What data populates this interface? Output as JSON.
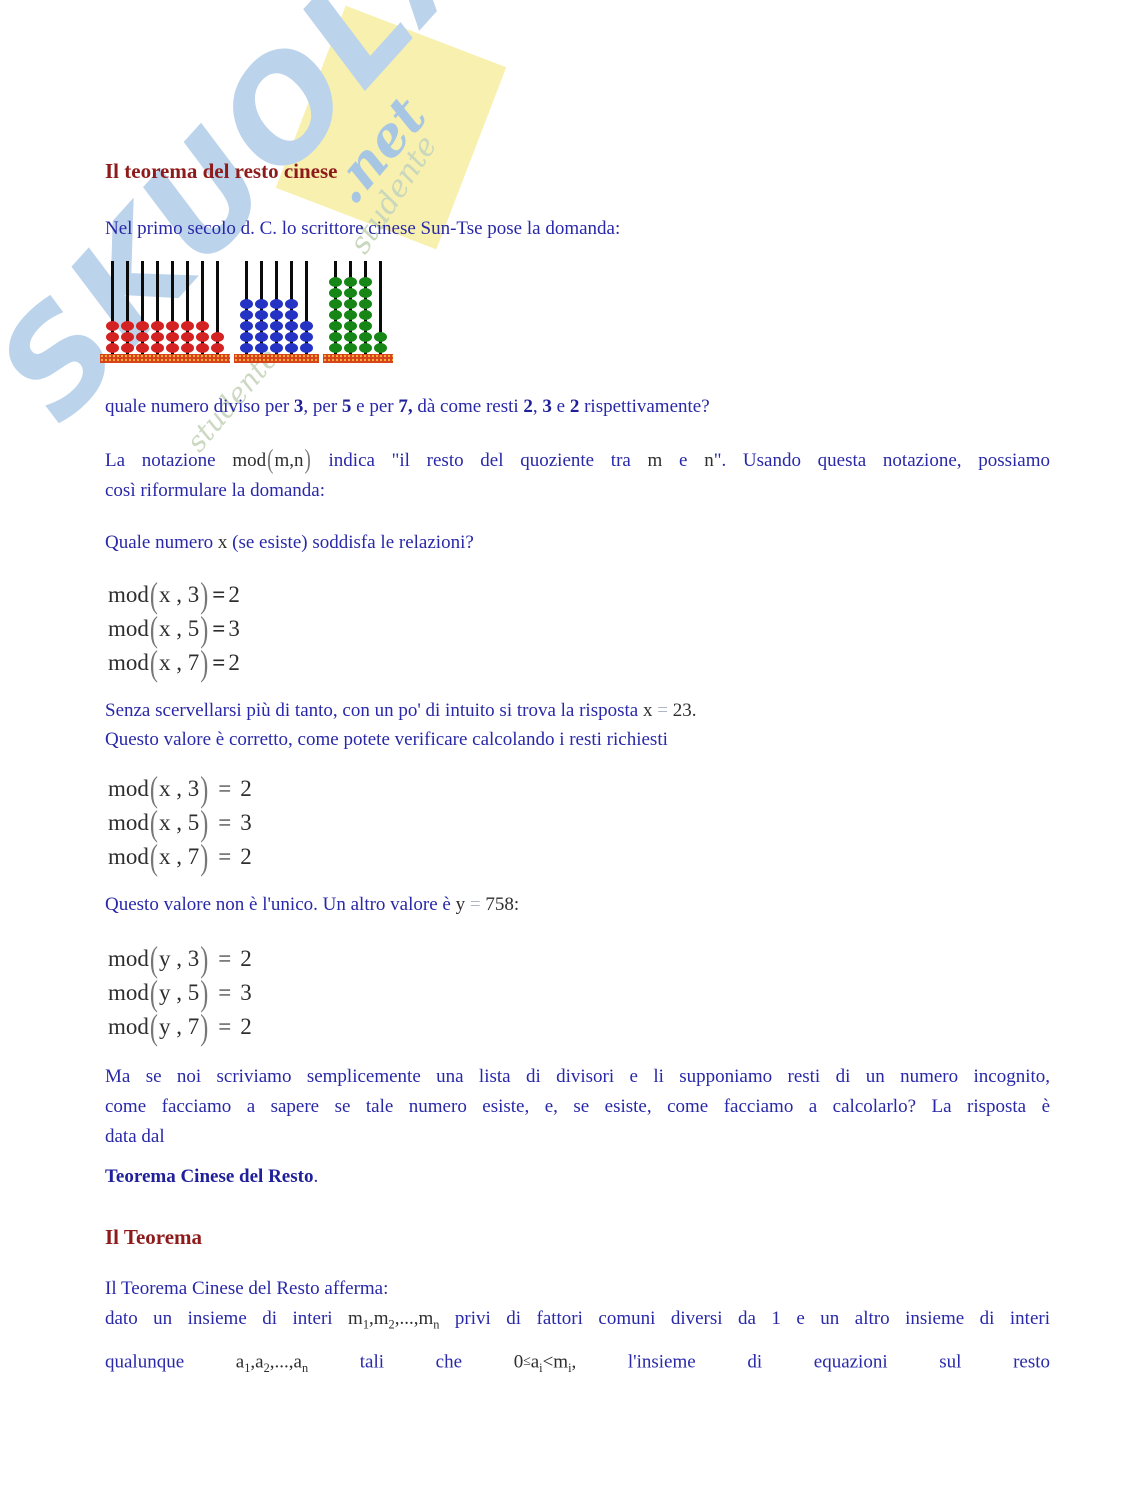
{
  "colors": {
    "body_text": "#2828a8",
    "heading_red": "#8e1b1b",
    "math_text": "#2e2e2e",
    "faint_equals": "#aeb6c6",
    "watermark_blue": "#bcd3ec",
    "watermark_yellow": "#f8f0ae",
    "watermark_green": "#c9d7bd",
    "abacus_base_orange": "#d7411a"
  },
  "watermark": {
    "brand_text": "SKUOLA",
    "net_text": ".net",
    "tagline1": "studente",
    "tagline2": "studente"
  },
  "heading1": "Il teorema del resto cinese",
  "para_intro": "Nel primo secolo d. C. lo scrittore cinese Sun-Tse pose la domanda:",
  "abacus": {
    "groups": [
      {
        "color": "#d42222",
        "rods": [
          3,
          3,
          3,
          3,
          3,
          3,
          3,
          2
        ]
      },
      {
        "color": "#2433c4",
        "rods": [
          5,
          5,
          5,
          5,
          3
        ]
      },
      {
        "color": "#168616",
        "rods": [
          7,
          7,
          7,
          2
        ]
      }
    ]
  },
  "question_runs": [
    [
      "quale numero diviso per ",
      "t"
    ],
    [
      "3",
      "b"
    ],
    [
      ", per ",
      "t"
    ],
    [
      "5",
      "b"
    ],
    [
      " e per ",
      "t"
    ],
    [
      "7,",
      "b"
    ],
    [
      " dà come resti ",
      "t"
    ],
    [
      "2",
      "b"
    ],
    [
      ", ",
      "t"
    ],
    [
      "3",
      "b"
    ],
    [
      " e ",
      "t"
    ],
    [
      "2",
      "b"
    ],
    [
      " rispettivamente?",
      "t"
    ]
  ],
  "notation_line1_runs": [
    [
      "La notazione ",
      "t"
    ],
    [
      "mod",
      "m"
    ],
    [
      "(",
      "p"
    ],
    [
      "m,n",
      "m"
    ],
    [
      ")",
      "p"
    ],
    [
      " indica \"il resto del quoziente tra ",
      "t"
    ],
    [
      "m",
      "m"
    ],
    [
      " e ",
      "t"
    ],
    [
      "n",
      "m"
    ],
    [
      "\". Usando questa notazione, possiamo",
      "t"
    ]
  ],
  "notation_line2": "così riformulare la domanda:",
  "quale_runs": [
    [
      "Quale numero ",
      "t"
    ],
    [
      "x",
      "m"
    ],
    [
      " (se esiste) soddisfa le relazioni?",
      "t"
    ]
  ],
  "eq_blocks": [
    {
      "func": "mod",
      "eq": "=",
      "bold_eq": true,
      "spaced": false,
      "rows": [
        {
          "args": "x , 3",
          "value": "2"
        },
        {
          "args": "x , 5",
          "value": "3"
        },
        {
          "args": "x , 7",
          "value": "2"
        }
      ]
    },
    {
      "func": "mod",
      "eq": "=",
      "bold_eq": false,
      "spaced": true,
      "rows": [
        {
          "args": "x , 3",
          "value": "2"
        },
        {
          "args": "x , 5",
          "value": "3"
        },
        {
          "args": "x , 7",
          "value": "2"
        }
      ]
    },
    {
      "func": "mod",
      "eq": "=",
      "bold_eq": false,
      "spaced": true,
      "rows": [
        {
          "args": "y , 3",
          "value": "2"
        },
        {
          "args": "y , 5",
          "value": "3"
        },
        {
          "args": "y , 7",
          "value": "2"
        }
      ]
    }
  ],
  "risposta_line1_runs": [
    [
      "Senza scervellarsi più di tanto, con un po' di intuito si trova la risposta  ",
      "t"
    ],
    [
      "x ",
      "m"
    ],
    [
      "=",
      "f"
    ],
    [
      " 23.",
      "m"
    ]
  ],
  "risposta_line2": "Questo valore è corretto, come potete verificare calcolando i resti richiesti",
  "unico_runs": [
    [
      "Questo valore non è l'unico.  Un altro valore è  ",
      "t"
    ],
    [
      "y ",
      "m"
    ],
    [
      "=",
      "f"
    ],
    [
      " 758:",
      "m"
    ]
  ],
  "ma_se_lines": [
    "Ma se noi scriviamo semplicemente una lista di divisori e li supponiamo resti di un numero incognito,",
    "come facciamo a sapere se tale numero esiste, e, se esiste, come facciamo a calcolarlo? La risposta è",
    "data dal"
  ],
  "teorema_cinese_runs": [
    [
      "Teorema Cinese del Resto",
      "b"
    ],
    [
      ".",
      "t"
    ]
  ],
  "heading2": "Il Teorema",
  "afferma": "Il Teorema Cinese del Resto afferma:",
  "dato_line1_runs": [
    [
      "dato un insieme di interi ",
      "t"
    ],
    [
      "m",
      "m"
    ],
    [
      "1",
      "s"
    ],
    [
      ",m",
      "m"
    ],
    [
      "2",
      "s"
    ],
    [
      ",...,m",
      "m"
    ],
    [
      "n",
      "s"
    ],
    [
      " privi di fattori comuni diversi da 1 e un altro insieme di interi",
      "t"
    ]
  ],
  "dato_line2_runs": [
    [
      "qualunque ",
      "t"
    ],
    [
      "a",
      "m"
    ],
    [
      "1",
      "s"
    ],
    [
      ",a",
      "m"
    ],
    [
      "2",
      "s"
    ],
    [
      ",...,a",
      "m"
    ],
    [
      "n",
      "s"
    ],
    [
      " tali che ",
      "t"
    ],
    [
      "0",
      "m"
    ],
    [
      "≤",
      "r"
    ],
    [
      "a",
      "m"
    ],
    [
      "i",
      "s"
    ],
    [
      "<",
      "m"
    ],
    [
      "m",
      "m"
    ],
    [
      "i",
      "s"
    ],
    [
      ", ",
      "m"
    ],
    [
      "l'insieme di equazioni sul resto",
      "t"
    ]
  ]
}
